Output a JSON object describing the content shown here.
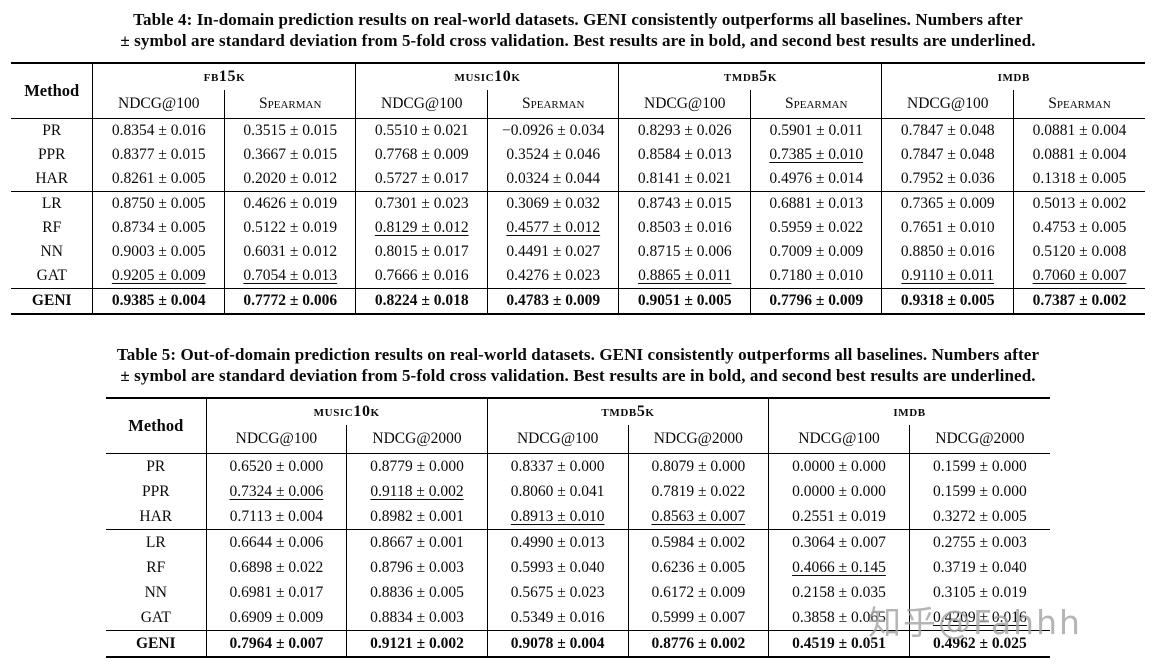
{
  "watermark": {
    "text": "知乎@Fahhh",
    "color": "#a3a3a3"
  },
  "tables": [
    {
      "id": "table4",
      "caption_line1": "Table 4: In-domain prediction results on real-world datasets. GENI consistently outperforms all baselines. Numbers after",
      "caption_line2": "± symbol are standard deviation from 5-fold cross validation. Best results are in bold, and second best results are underlined.",
      "method_label": "Method",
      "groups": [
        {
          "name": "fb15k",
          "cols": [
            {
              "label": "NDCG@100",
              "sc": false
            },
            {
              "label": "Spearman",
              "sc": true
            }
          ]
        },
        {
          "name": "music10k",
          "cols": [
            {
              "label": "NDCG@100",
              "sc": false
            },
            {
              "label": "Spearman",
              "sc": true
            }
          ]
        },
        {
          "name": "tmdb5k",
          "cols": [
            {
              "label": "NDCG@100",
              "sc": false
            },
            {
              "label": "Spearman",
              "sc": true
            }
          ]
        },
        {
          "name": "imdb",
          "cols": [
            {
              "label": "NDCG@100",
              "sc": false
            },
            {
              "label": "Spearman",
              "sc": true
            }
          ]
        }
      ],
      "sections": [
        {
          "rows": [
            {
              "method": "PR",
              "bold": false,
              "cells": [
                {
                  "v": "0.8354 ± 0.016"
                },
                {
                  "v": "0.3515 ± 0.015"
                },
                {
                  "v": "0.5510 ± 0.021"
                },
                {
                  "v": "−0.0926 ± 0.034"
                },
                {
                  "v": "0.8293 ± 0.026"
                },
                {
                  "v": "0.5901 ± 0.011"
                },
                {
                  "v": "0.7847 ± 0.048"
                },
                {
                  "v": "0.0881 ± 0.004"
                }
              ]
            },
            {
              "method": "PPR",
              "bold": false,
              "cells": [
                {
                  "v": "0.8377 ± 0.015"
                },
                {
                  "v": "0.3667 ± 0.015"
                },
                {
                  "v": "0.7768 ± 0.009"
                },
                {
                  "v": "0.3524 ± 0.046"
                },
                {
                  "v": "0.8584 ± 0.013"
                },
                {
                  "v": "0.7385 ± 0.010",
                  "u": true
                },
                {
                  "v": "0.7847 ± 0.048"
                },
                {
                  "v": "0.0881 ± 0.004"
                }
              ]
            },
            {
              "method": "HAR",
              "bold": false,
              "cells": [
                {
                  "v": "0.8261 ± 0.005"
                },
                {
                  "v": "0.2020 ± 0.012"
                },
                {
                  "v": "0.5727 ± 0.017"
                },
                {
                  "v": "0.0324 ± 0.044"
                },
                {
                  "v": "0.8141 ± 0.021"
                },
                {
                  "v": "0.4976 ± 0.014"
                },
                {
                  "v": "0.7952 ± 0.036"
                },
                {
                  "v": "0.1318 ± 0.005"
                }
              ]
            }
          ]
        },
        {
          "rows": [
            {
              "method": "LR",
              "bold": false,
              "cells": [
                {
                  "v": "0.8750 ± 0.005"
                },
                {
                  "v": "0.4626 ± 0.019"
                },
                {
                  "v": "0.7301 ± 0.023"
                },
                {
                  "v": "0.3069 ± 0.032"
                },
                {
                  "v": "0.8743 ± 0.015"
                },
                {
                  "v": "0.6881 ± 0.013"
                },
                {
                  "v": "0.7365 ± 0.009"
                },
                {
                  "v": "0.5013 ± 0.002"
                }
              ]
            },
            {
              "method": "RF",
              "bold": false,
              "cells": [
                {
                  "v": "0.8734 ± 0.005"
                },
                {
                  "v": "0.5122 ± 0.019"
                },
                {
                  "v": "0.8129 ± 0.012",
                  "u": true
                },
                {
                  "v": "0.4577 ± 0.012",
                  "u": true
                },
                {
                  "v": "0.8503 ± 0.016"
                },
                {
                  "v": "0.5959 ± 0.022"
                },
                {
                  "v": "0.7651 ± 0.010"
                },
                {
                  "v": "0.4753 ± 0.005"
                }
              ]
            },
            {
              "method": "NN",
              "bold": false,
              "cells": [
                {
                  "v": "0.9003 ± 0.005"
                },
                {
                  "v": "0.6031 ± 0.012"
                },
                {
                  "v": "0.8015 ± 0.017"
                },
                {
                  "v": "0.4491 ± 0.027"
                },
                {
                  "v": "0.8715 ± 0.006"
                },
                {
                  "v": "0.7009 ± 0.009"
                },
                {
                  "v": "0.8850 ± 0.016"
                },
                {
                  "v": "0.5120 ± 0.008"
                }
              ]
            },
            {
              "method": "GAT",
              "bold": false,
              "cells": [
                {
                  "v": "0.9205 ± 0.009",
                  "u": true
                },
                {
                  "v": "0.7054 ± 0.013",
                  "u": true
                },
                {
                  "v": "0.7666 ± 0.016"
                },
                {
                  "v": "0.4276 ± 0.023"
                },
                {
                  "v": "0.8865 ± 0.011",
                  "u": true
                },
                {
                  "v": "0.7180 ± 0.010"
                },
                {
                  "v": "0.9110 ± 0.011",
                  "u": true
                },
                {
                  "v": "0.7060 ± 0.007",
                  "u": true
                }
              ]
            }
          ]
        },
        {
          "rows": [
            {
              "method": "GENI",
              "bold": true,
              "cells": [
                {
                  "v": "0.9385 ± 0.004"
                },
                {
                  "v": "0.7772 ± 0.006"
                },
                {
                  "v": "0.8224 ± 0.018"
                },
                {
                  "v": "0.4783 ± 0.009"
                },
                {
                  "v": "0.9051 ± 0.005"
                },
                {
                  "v": "0.7796 ± 0.009"
                },
                {
                  "v": "0.9318 ± 0.005"
                },
                {
                  "v": "0.7387 ± 0.002"
                }
              ]
            }
          ]
        }
      ]
    },
    {
      "id": "table5",
      "caption_line1": "Table 5: Out-of-domain prediction results on real-world datasets. GENI consistently outperforms all baselines. Numbers after",
      "caption_line2": "± symbol are standard deviation from 5-fold cross validation. Best results are in bold, and second best results are underlined.",
      "method_label": "Method",
      "groups": [
        {
          "name": "music10k",
          "cols": [
            {
              "label": "NDCG@100",
              "sc": false
            },
            {
              "label": "NDCG@2000",
              "sc": false
            }
          ]
        },
        {
          "name": "tmdb5k",
          "cols": [
            {
              "label": "NDCG@100",
              "sc": false
            },
            {
              "label": "NDCG@2000",
              "sc": false
            }
          ]
        },
        {
          "name": "imdb",
          "cols": [
            {
              "label": "NDCG@100",
              "sc": false
            },
            {
              "label": "NDCG@2000",
              "sc": false
            }
          ]
        }
      ],
      "sections": [
        {
          "rows": [
            {
              "method": "PR",
              "bold": false,
              "cells": [
                {
                  "v": "0.6520 ± 0.000"
                },
                {
                  "v": "0.8779 ± 0.000"
                },
                {
                  "v": "0.8337 ± 0.000"
                },
                {
                  "v": "0.8079 ± 0.000"
                },
                {
                  "v": "0.0000 ± 0.000"
                },
                {
                  "v": "0.1599 ± 0.000"
                }
              ]
            },
            {
              "method": "PPR",
              "bold": false,
              "cells": [
                {
                  "v": "0.7324 ± 0.006",
                  "u": true
                },
                {
                  "v": "0.9118 ± 0.002",
                  "u": true
                },
                {
                  "v": "0.8060 ± 0.041"
                },
                {
                  "v": "0.7819 ± 0.022"
                },
                {
                  "v": "0.0000 ± 0.000"
                },
                {
                  "v": "0.1599 ± 0.000"
                }
              ]
            },
            {
              "method": "HAR",
              "bold": false,
              "cells": [
                {
                  "v": "0.7113 ± 0.004"
                },
                {
                  "v": "0.8982 ± 0.001"
                },
                {
                  "v": "0.8913 ± 0.010",
                  "u": true
                },
                {
                  "v": "0.8563 ± 0.007",
                  "u": true
                },
                {
                  "v": "0.2551 ± 0.019"
                },
                {
                  "v": "0.3272 ± 0.005"
                }
              ]
            }
          ]
        },
        {
          "rows": [
            {
              "method": "LR",
              "bold": false,
              "cells": [
                {
                  "v": "0.6644 ± 0.006"
                },
                {
                  "v": "0.8667 ± 0.001"
                },
                {
                  "v": "0.4990 ± 0.013"
                },
                {
                  "v": "0.5984 ± 0.002"
                },
                {
                  "v": "0.3064 ± 0.007"
                },
                {
                  "v": "0.2755 ± 0.003"
                }
              ]
            },
            {
              "method": "RF",
              "bold": false,
              "cells": [
                {
                  "v": "0.6898 ± 0.022"
                },
                {
                  "v": "0.8796 ± 0.003"
                },
                {
                  "v": "0.5993 ± 0.040"
                },
                {
                  "v": "0.6236 ± 0.005"
                },
                {
                  "v": "0.4066 ± 0.145",
                  "u": true
                },
                {
                  "v": "0.3719 ± 0.040"
                }
              ]
            },
            {
              "method": "NN",
              "bold": false,
              "cells": [
                {
                  "v": "0.6981 ± 0.017"
                },
                {
                  "v": "0.8836 ± 0.005"
                },
                {
                  "v": "0.5675 ± 0.023"
                },
                {
                  "v": "0.6172 ± 0.009"
                },
                {
                  "v": "0.2158 ± 0.035"
                },
                {
                  "v": "0.3105 ± 0.019"
                }
              ]
            },
            {
              "method": "GAT",
              "bold": false,
              "cells": [
                {
                  "v": "0.6909 ± 0.009"
                },
                {
                  "v": "0.8834 ± 0.003"
                },
                {
                  "v": "0.5349 ± 0.016"
                },
                {
                  "v": "0.5999 ± 0.007"
                },
                {
                  "v": "0.3858 ± 0.065"
                },
                {
                  "v": "0.4209 ± 0.016",
                  "u": true
                }
              ]
            }
          ]
        },
        {
          "rows": [
            {
              "method": "GENI",
              "bold": true,
              "cells": [
                {
                  "v": "0.7964 ± 0.007"
                },
                {
                  "v": "0.9121 ± 0.002"
                },
                {
                  "v": "0.9078 ± 0.004"
                },
                {
                  "v": "0.8776 ± 0.002"
                },
                {
                  "v": "0.4519 ± 0.051"
                },
                {
                  "v": "0.4962 ± 0.025"
                }
              ]
            }
          ]
        }
      ]
    }
  ]
}
